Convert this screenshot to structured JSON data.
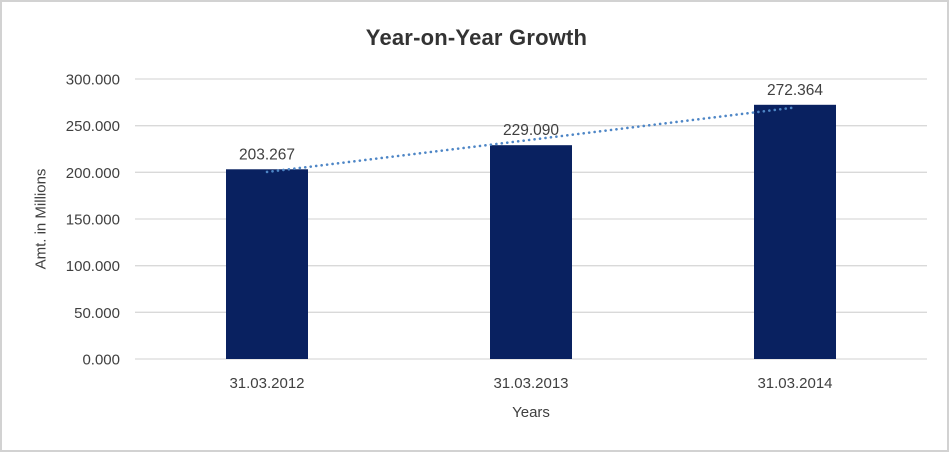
{
  "window": {
    "background": "#ffffff",
    "border_color": "#d2d2d2"
  },
  "chart_data": {
    "type": "bar",
    "title": "Year-on-Year Growth",
    "xlabel": "Years",
    "ylabel": "Amt. in Millions",
    "categories": [
      "31.03.2012",
      "31.03.2013",
      "31.03.2014"
    ],
    "values": [
      203.267,
      229.09,
      272.364
    ],
    "data_labels": [
      "203.267",
      "229.090",
      "272.364"
    ],
    "y_axis": {
      "tick_values": [
        0,
        50,
        100,
        150,
        200,
        250,
        300
      ],
      "tick_labels": [
        "0.000",
        "50.000",
        "100.000",
        "150.000",
        "200.000",
        "250.000",
        "300.000"
      ],
      "ylim": [
        0,
        300
      ]
    },
    "grid": true,
    "legend": "none",
    "series_name": "Amt. in Millions",
    "bar_color": "#092160",
    "gridline_color": "#d9d9d9",
    "axis_line_color": "#d9d9d9",
    "text_color": "#404040",
    "title_color": "#333333",
    "trendline": {
      "style": "dotted",
      "color": "#4e86c6",
      "values": [
        200.4,
        234.9,
        269.5
      ]
    }
  }
}
